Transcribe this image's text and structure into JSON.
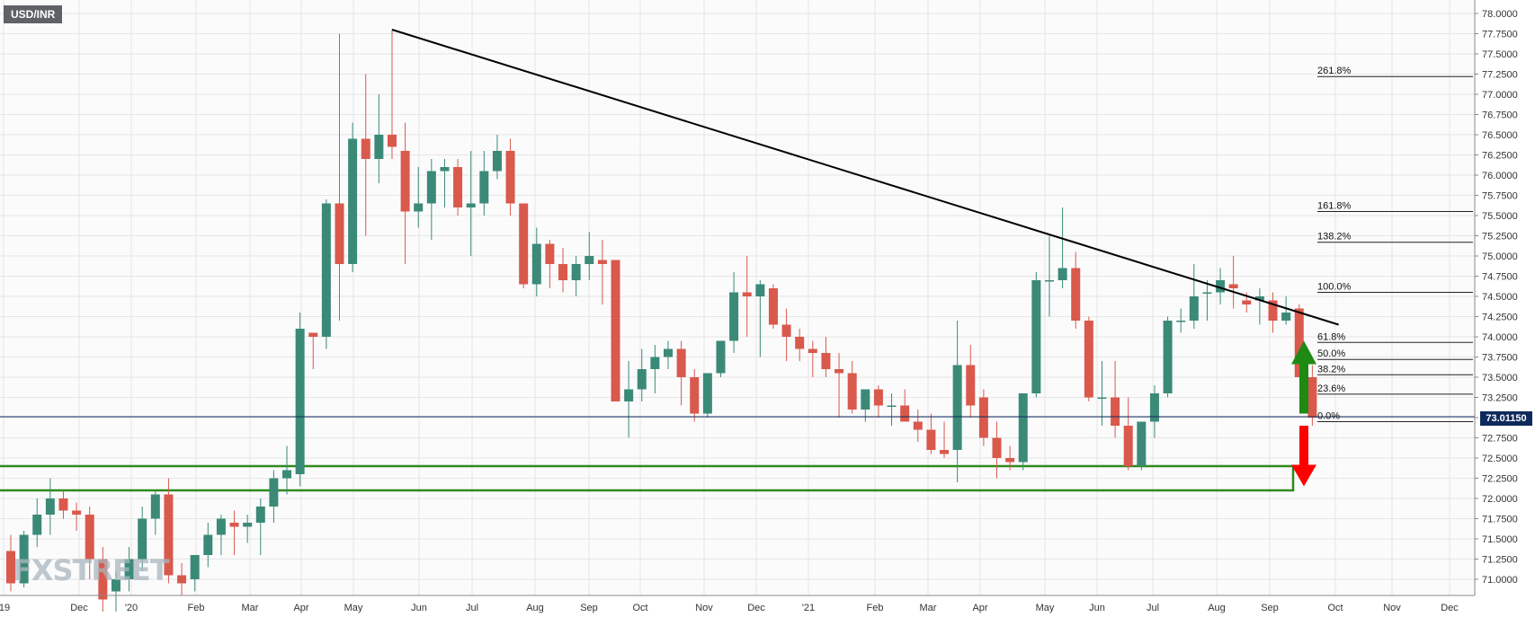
{
  "symbol": "USD/INR",
  "current_price": "73.01150",
  "watermark": "FXSTREET",
  "colors": {
    "up": "#3b8a78",
    "down": "#d9594c",
    "grid": "#e6e6e6",
    "trendline": "#000000",
    "support_box": "#2f8a1d",
    "arrow_up": "#1e8a14",
    "arrow_down": "#ff0000",
    "price_line": "#0e2a5c"
  },
  "chart_data": {
    "type": "candlestick",
    "title": "",
    "ylim": [
      70.9,
      78.05
    ],
    "y_ticks": [
      "78.0000",
      "77.7500",
      "77.5000",
      "77.2500",
      "77.0000",
      "76.7500",
      "76.5000",
      "76.2500",
      "76.0000",
      "75.7500",
      "75.5000",
      "75.2500",
      "75.0000",
      "74.7500",
      "74.5000",
      "74.2500",
      "74.0000",
      "73.7500",
      "73.5000",
      "73.2500",
      "73.0000",
      "72.7500",
      "72.5000",
      "72.2500",
      "72.0000",
      "71.7500",
      "71.5000",
      "71.2500",
      "71.0000"
    ],
    "x_labels": [
      "'19",
      "Dec",
      "'20",
      "Feb",
      "Mar",
      "Apr",
      "May",
      "Jun",
      "Jul",
      "Aug",
      "Sep",
      "Oct",
      "Nov",
      "Dec",
      "'21",
      "Feb",
      "Mar",
      "Apr",
      "May",
      "Jun",
      "Jul",
      "Aug",
      "Sep",
      "Oct",
      "Nov",
      "Dec"
    ],
    "candles": [
      [
        71.35,
        71.55,
        70.85,
        70.95
      ],
      [
        70.95,
        71.6,
        70.9,
        71.55
      ],
      [
        71.55,
        72.0,
        71.4,
        71.8
      ],
      [
        71.8,
        72.25,
        71.55,
        72.0
      ],
      [
        72.0,
        72.1,
        71.75,
        71.85
      ],
      [
        71.85,
        71.95,
        71.6,
        71.8
      ],
      [
        71.8,
        71.9,
        71.0,
        71.25
      ],
      [
        71.25,
        71.4,
        70.6,
        70.75
      ],
      [
        70.85,
        71.1,
        70.6,
        71.0
      ],
      [
        71.0,
        71.4,
        70.85,
        71.25
      ],
      [
        71.25,
        71.9,
        71.1,
        71.75
      ],
      [
        71.75,
        72.1,
        71.55,
        72.05
      ],
      [
        72.05,
        72.25,
        70.95,
        71.05
      ],
      [
        71.05,
        71.2,
        70.8,
        70.95
      ],
      [
        71.0,
        71.3,
        70.85,
        71.3
      ],
      [
        71.3,
        71.7,
        71.15,
        71.55
      ],
      [
        71.55,
        71.8,
        71.3,
        71.75
      ],
      [
        71.7,
        71.85,
        71.3,
        71.65
      ],
      [
        71.65,
        71.8,
        71.45,
        71.7
      ],
      [
        71.7,
        72.0,
        71.3,
        71.9
      ],
      [
        71.9,
        72.35,
        71.7,
        72.25
      ],
      [
        72.25,
        72.65,
        72.05,
        72.35
      ],
      [
        72.3,
        74.3,
        72.15,
        74.1
      ],
      [
        74.05,
        74.05,
        73.6,
        74.0
      ],
      [
        74.0,
        75.7,
        73.85,
        75.65
      ],
      [
        75.65,
        77.75,
        74.2,
        74.9
      ],
      [
        74.9,
        76.65,
        74.8,
        76.45
      ],
      [
        76.45,
        77.25,
        75.25,
        76.2
      ],
      [
        76.2,
        77.0,
        75.9,
        76.5
      ],
      [
        76.5,
        77.8,
        76.2,
        76.35
      ],
      [
        76.3,
        76.65,
        74.9,
        75.55
      ],
      [
        75.55,
        76.1,
        75.35,
        75.65
      ],
      [
        75.65,
        76.2,
        75.2,
        76.05
      ],
      [
        76.05,
        76.2,
        75.6,
        76.1
      ],
      [
        76.1,
        76.2,
        75.5,
        75.6
      ],
      [
        75.6,
        76.3,
        75.0,
        75.65
      ],
      [
        75.65,
        76.3,
        75.5,
        76.05
      ],
      [
        76.05,
        76.5,
        75.95,
        76.3
      ],
      [
        76.3,
        76.45,
        75.5,
        75.65
      ],
      [
        75.65,
        75.65,
        74.6,
        74.65
      ],
      [
        74.65,
        75.35,
        74.5,
        75.15
      ],
      [
        75.15,
        75.2,
        74.6,
        74.9
      ],
      [
        74.9,
        75.1,
        74.55,
        74.7
      ],
      [
        74.7,
        75.0,
        74.5,
        74.9
      ],
      [
        74.9,
        75.3,
        74.7,
        75.0
      ],
      [
        74.95,
        75.2,
        74.4,
        74.9
      ],
      [
        74.95,
        74.95,
        73.2,
        73.2
      ],
      [
        73.2,
        73.7,
        72.75,
        73.35
      ],
      [
        73.35,
        73.85,
        73.2,
        73.6
      ],
      [
        73.6,
        73.9,
        73.3,
        73.75
      ],
      [
        73.75,
        73.95,
        73.6,
        73.85
      ],
      [
        73.85,
        73.95,
        73.15,
        73.5
      ],
      [
        73.5,
        73.6,
        72.95,
        73.05
      ],
      [
        73.05,
        73.55,
        73.0,
        73.55
      ],
      [
        73.55,
        73.9,
        73.5,
        73.95
      ],
      [
        73.95,
        74.8,
        73.8,
        74.55
      ],
      [
        74.55,
        75.0,
        74.0,
        74.5
      ],
      [
        74.5,
        74.7,
        73.75,
        74.65
      ],
      [
        74.6,
        74.65,
        74.1,
        74.15
      ],
      [
        74.15,
        74.35,
        73.7,
        74.0
      ],
      [
        74.0,
        74.1,
        73.7,
        73.85
      ],
      [
        73.85,
        73.95,
        73.5,
        73.8
      ],
      [
        73.8,
        74.0,
        73.5,
        73.6
      ],
      [
        73.6,
        73.8,
        73.0,
        73.55
      ],
      [
        73.55,
        73.7,
        73.05,
        73.1
      ],
      [
        73.1,
        73.35,
        72.95,
        73.35
      ],
      [
        73.35,
        73.4,
        73.0,
        73.15
      ],
      [
        73.15,
        73.3,
        72.9,
        73.15
      ],
      [
        73.15,
        73.35,
        72.95,
        72.95
      ],
      [
        72.95,
        73.1,
        72.7,
        72.85
      ],
      [
        72.85,
        73.05,
        72.55,
        72.6
      ],
      [
        72.6,
        72.95,
        72.5,
        72.55
      ],
      [
        72.6,
        74.2,
        72.2,
        73.65
      ],
      [
        73.65,
        73.9,
        73.0,
        73.15
      ],
      [
        73.25,
        73.35,
        72.65,
        72.75
      ],
      [
        72.75,
        72.95,
        72.25,
        72.5
      ],
      [
        72.5,
        72.65,
        72.35,
        72.45
      ],
      [
        72.45,
        73.3,
        72.35,
        73.3
      ],
      [
        73.3,
        74.8,
        73.25,
        74.7
      ],
      [
        74.7,
        75.25,
        74.25,
        74.7
      ],
      [
        74.7,
        75.6,
        74.6,
        74.85
      ],
      [
        74.85,
        75.05,
        74.1,
        74.2
      ],
      [
        74.2,
        74.25,
        73.2,
        73.25
      ],
      [
        73.25,
        73.7,
        72.9,
        73.25
      ],
      [
        73.25,
        73.7,
        72.75,
        72.9
      ],
      [
        72.9,
        73.25,
        72.35,
        72.4
      ],
      [
        72.4,
        72.95,
        72.35,
        72.95
      ],
      [
        72.95,
        73.4,
        72.75,
        73.3
      ],
      [
        73.3,
        74.25,
        73.25,
        74.2
      ],
      [
        74.2,
        74.35,
        74.05,
        74.2
      ],
      [
        74.2,
        74.9,
        74.1,
        74.5
      ],
      [
        74.55,
        74.7,
        74.2,
        74.55
      ],
      [
        74.55,
        74.85,
        74.4,
        74.7
      ],
      [
        74.65,
        75.0,
        74.35,
        74.6
      ],
      [
        74.45,
        74.55,
        74.3,
        74.4
      ],
      [
        74.45,
        74.6,
        74.15,
        74.5
      ],
      [
        74.45,
        74.55,
        74.05,
        74.2
      ],
      [
        74.2,
        74.5,
        74.15,
        74.3
      ],
      [
        74.35,
        74.4,
        73.5,
        73.5
      ],
      [
        73.5,
        73.65,
        72.9,
        73.0
      ]
    ],
    "trendline": [
      [
        29,
        77.8
      ],
      [
        101,
        74.15
      ]
    ],
    "support_zone": {
      "from": 72.1,
      "to": 72.4
    },
    "fibonacci": [
      {
        "label": "261.8%",
        "value": 77.22
      },
      {
        "label": "161.8%",
        "value": 75.55
      },
      {
        "label": "138.2%",
        "value": 75.17
      },
      {
        "label": "100.0%",
        "value": 74.55
      },
      {
        "label": "61.8%",
        "value": 73.93
      },
      {
        "label": "50.0%",
        "value": 73.72
      },
      {
        "label": "38.2%",
        "value": 73.53
      },
      {
        "label": "23.6%",
        "value": 73.29
      },
      {
        "label": "0.0%",
        "value": 72.95
      }
    ],
    "current": 73.0115,
    "arrows": {
      "up_from": 73.05,
      "up_to": 73.95,
      "down_from": 72.9,
      "down_to": 72.15
    }
  }
}
